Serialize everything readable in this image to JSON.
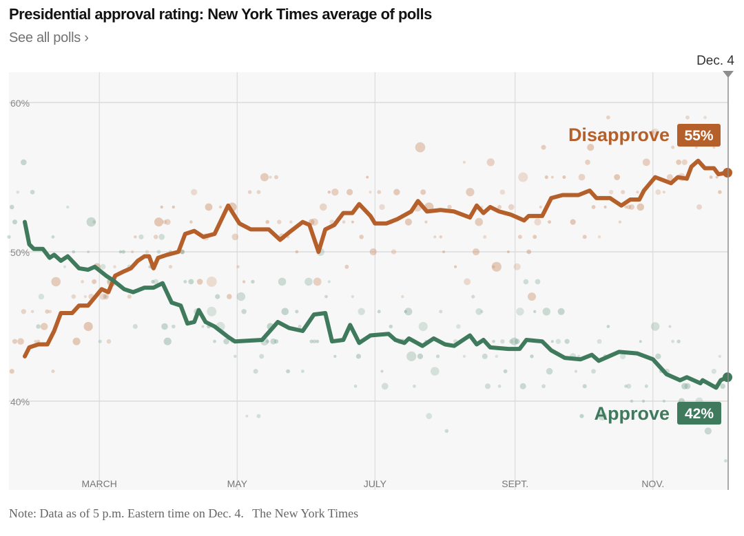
{
  "header": {
    "title": "Presidential approval rating: New York Times average of polls",
    "see_all_link": "See all polls ›"
  },
  "footer": {
    "note": "Note: Data as of 5 p.m. Eastern time on Dec. 4.",
    "source": "The New York Times"
  },
  "chart_data": {
    "type": "line",
    "title": "Presidential approval rating: New York Times average of polls",
    "xlabel": "",
    "ylabel": "",
    "xlim": [
      "Jan 20",
      "Dec 4"
    ],
    "ylim": [
      34,
      62
    ],
    "grid": true,
    "end_date_label": "Dec. 4",
    "y_ticks": [
      {
        "value": 60,
        "label": "60%"
      },
      {
        "value": 50,
        "label": "50%"
      },
      {
        "value": 40,
        "label": "40%"
      }
    ],
    "x_ticks": [
      {
        "date": "Mar 1",
        "label": "MARCH"
      },
      {
        "date": "May 1",
        "label": "MAY"
      },
      {
        "date": "Jul 1",
        "label": "JULY"
      },
      {
        "date": "Sep 1",
        "label": "SEPT."
      },
      {
        "date": "Nov 1",
        "label": "NOV."
      }
    ],
    "series": [
      {
        "name": "Disapprove",
        "end_label": "55%",
        "color": "#b5602b",
        "dot_color": "#c98a62",
        "points": [
          [
            "Jan 27",
            43.0
          ],
          [
            "Jan 29",
            43.6
          ],
          [
            "Feb 2",
            43.8
          ],
          [
            "Feb 6",
            43.8
          ],
          [
            "Feb 9",
            44.7
          ],
          [
            "Feb 12",
            45.9
          ],
          [
            "Feb 17",
            45.9
          ],
          [
            "Feb 20",
            46.4
          ],
          [
            "Feb 24",
            46.4
          ],
          [
            "Mar 2",
            47.5
          ],
          [
            "Mar 5",
            47.3
          ],
          [
            "Mar 8",
            48.4
          ],
          [
            "Mar 12",
            48.7
          ],
          [
            "Mar 15",
            48.9
          ],
          [
            "Mar 18",
            49.4
          ],
          [
            "Mar 21",
            49.7
          ],
          [
            "Mar 23",
            49.7
          ],
          [
            "Mar 25",
            48.9
          ],
          [
            "Mar 27",
            49.6
          ],
          [
            "Mar 31",
            49.8
          ],
          [
            "Apr 5",
            50.0
          ],
          [
            "Apr 8",
            51.2
          ],
          [
            "Apr 12",
            51.4
          ],
          [
            "Apr 16",
            51.0
          ],
          [
            "Apr 21",
            51.2
          ],
          [
            "Apr 27",
            53.1
          ],
          [
            "May 2",
            51.9
          ],
          [
            "May 7",
            51.5
          ],
          [
            "May 15",
            51.5
          ],
          [
            "May 20",
            50.8
          ],
          [
            "May 24",
            51.3
          ],
          [
            "May 30",
            52.0
          ],
          [
            "Jun 2",
            51.8
          ],
          [
            "Jun 6",
            50.0
          ],
          [
            "Jun 9",
            51.5
          ],
          [
            "Jun 13",
            51.8
          ],
          [
            "Jun 17",
            52.6
          ],
          [
            "Jun 21",
            52.6
          ],
          [
            "Jun 24",
            53.2
          ],
          [
            "Jun 29",
            52.4
          ],
          [
            "Jul 1",
            51.9
          ],
          [
            "Jul 6",
            51.9
          ],
          [
            "Jul 11",
            52.2
          ],
          [
            "Jul 17",
            52.7
          ],
          [
            "Jul 20",
            53.4
          ],
          [
            "Jul 24",
            52.7
          ],
          [
            "Jul 30",
            52.8
          ],
          [
            "Aug 5",
            52.7
          ],
          [
            "Aug 12",
            52.3
          ],
          [
            "Aug 15",
            53.1
          ],
          [
            "Aug 18",
            52.6
          ],
          [
            "Aug 21",
            53.0
          ],
          [
            "Aug 25",
            52.7
          ],
          [
            "Aug 30",
            52.5
          ],
          [
            "Sep 5",
            52.1
          ],
          [
            "Sep 7",
            52.4
          ],
          [
            "Sep 13",
            52.4
          ],
          [
            "Sep 17",
            53.6
          ],
          [
            "Sep 22",
            53.8
          ],
          [
            "Sep 29",
            53.8
          ],
          [
            "Oct 4",
            54.1
          ],
          [
            "Oct 7",
            53.6
          ],
          [
            "Oct 13",
            53.6
          ],
          [
            "Oct 18",
            53.1
          ],
          [
            "Oct 22",
            53.5
          ],
          [
            "Oct 26",
            53.5
          ],
          [
            "Oct 28",
            54.1
          ],
          [
            "Nov 2",
            55.0
          ],
          [
            "Nov 9",
            54.6
          ],
          [
            "Nov 12",
            55.0
          ],
          [
            "Nov 16",
            54.9
          ],
          [
            "Nov 18",
            55.7
          ],
          [
            "Nov 21",
            56.1
          ],
          [
            "Nov 24",
            55.6
          ],
          [
            "Nov 28",
            55.6
          ],
          [
            "Nov 30",
            55.2
          ],
          [
            "Dec 4",
            55.3
          ]
        ]
      },
      {
        "name": "Approve",
        "end_label": "42%",
        "color": "#3f7a5d",
        "dot_color": "#7ea894",
        "points": [
          [
            "Jan 27",
            52.0
          ],
          [
            "Jan 29",
            50.5
          ],
          [
            "Jan 31",
            50.2
          ],
          [
            "Feb 4",
            50.2
          ],
          [
            "Feb 7",
            49.6
          ],
          [
            "Feb 9",
            49.8
          ],
          [
            "Feb 12",
            49.4
          ],
          [
            "Feb 15",
            49.7
          ],
          [
            "Feb 20",
            48.9
          ],
          [
            "Feb 24",
            48.8
          ],
          [
            "Feb 27",
            49.0
          ],
          [
            "Mar 4",
            48.4
          ],
          [
            "Mar 7",
            48.1
          ],
          [
            "Mar 12",
            47.5
          ],
          [
            "Mar 16",
            47.3
          ],
          [
            "Mar 21",
            47.6
          ],
          [
            "Mar 25",
            47.6
          ],
          [
            "Mar 29",
            47.9
          ],
          [
            "Apr 2",
            46.6
          ],
          [
            "Apr 6",
            46.4
          ],
          [
            "Apr 9",
            45.2
          ],
          [
            "Apr 12",
            45.3
          ],
          [
            "Apr 14",
            46.1
          ],
          [
            "Apr 17",
            45.3
          ],
          [
            "Apr 21",
            45.0
          ],
          [
            "Apr 27",
            44.3
          ],
          [
            "Apr 30",
            44.0
          ],
          [
            "May 12",
            44.1
          ],
          [
            "May 19",
            45.3
          ],
          [
            "May 24",
            44.9
          ],
          [
            "May 30",
            44.7
          ],
          [
            "Jun 4",
            45.8
          ],
          [
            "Jun 9",
            45.9
          ],
          [
            "Jun 12",
            44.0
          ],
          [
            "Jun 17",
            44.1
          ],
          [
            "Jun 20",
            45.1
          ],
          [
            "Jun 24",
            43.9
          ],
          [
            "Jun 29",
            44.4
          ],
          [
            "Jul 7",
            44.5
          ],
          [
            "Jul 10",
            44.1
          ],
          [
            "Jul 14",
            43.9
          ],
          [
            "Jul 16",
            44.2
          ],
          [
            "Jul 22",
            43.7
          ],
          [
            "Jul 27",
            44.2
          ],
          [
            "Aug 1",
            43.8
          ],
          [
            "Aug 5",
            43.7
          ],
          [
            "Aug 12",
            44.4
          ],
          [
            "Aug 15",
            43.8
          ],
          [
            "Aug 18",
            44.1
          ],
          [
            "Aug 21",
            43.6
          ],
          [
            "Aug 29",
            43.5
          ],
          [
            "Sep 3",
            43.5
          ],
          [
            "Sep 6",
            44.1
          ],
          [
            "Sep 13",
            44.0
          ],
          [
            "Sep 17",
            43.4
          ],
          [
            "Sep 23",
            42.9
          ],
          [
            "Sep 30",
            42.8
          ],
          [
            "Oct 5",
            43.1
          ],
          [
            "Oct 8",
            42.7
          ],
          [
            "Oct 17",
            43.3
          ],
          [
            "Oct 25",
            43.2
          ],
          [
            "Nov 1",
            42.8
          ],
          [
            "Nov 7",
            41.8
          ],
          [
            "Nov 13",
            41.4
          ],
          [
            "Nov 16",
            41.6
          ],
          [
            "Nov 22",
            41.2
          ],
          [
            "Nov 23",
            41.4
          ],
          [
            "Nov 29",
            40.9
          ],
          [
            "Dec 1",
            41.4
          ],
          [
            "Dec 4",
            41.6
          ]
        ]
      }
    ]
  }
}
